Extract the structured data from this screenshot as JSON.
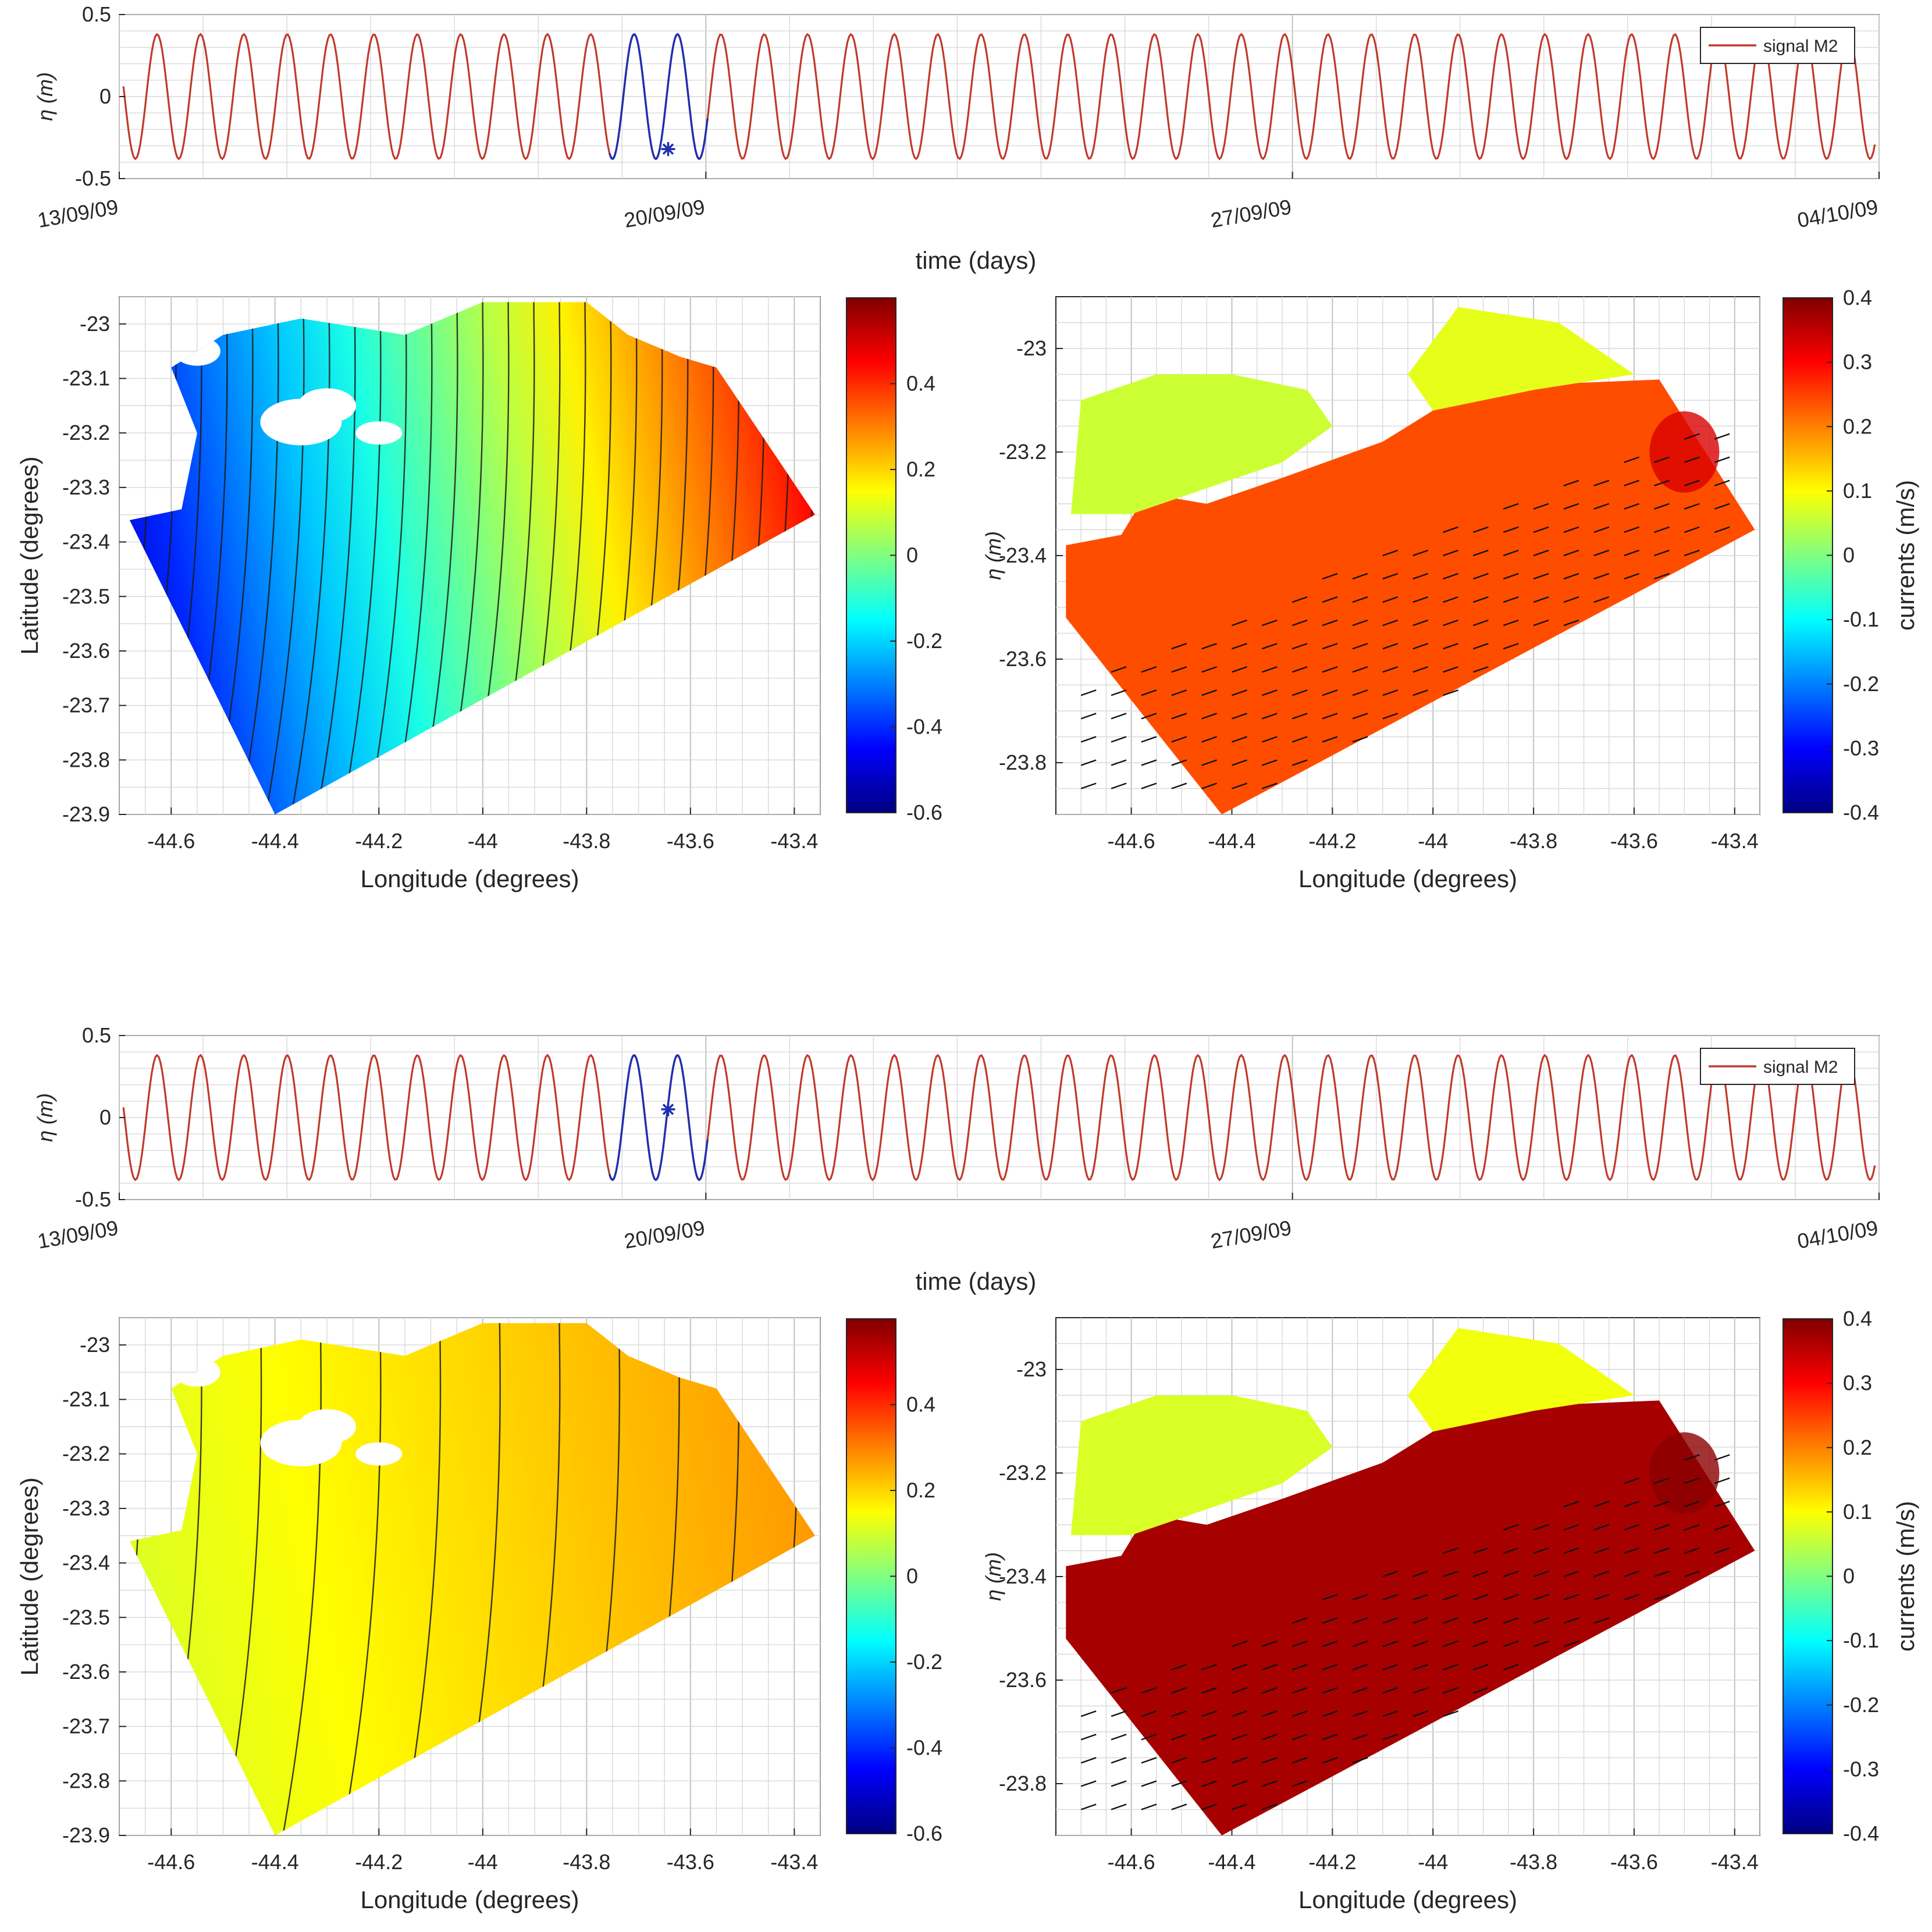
{
  "chart_data": [
    {
      "id": "ts1",
      "type": "line",
      "xlabel": "time (days)",
      "ylabel": "η (m)",
      "ylim": [
        -0.5,
        0.5
      ],
      "yticks": [
        "0.5",
        "0",
        "-0.5"
      ],
      "xticks": [
        "13/09/09",
        "20/09/09",
        "27/09/09",
        "04/10/09"
      ],
      "xlim": [
        "13/09/09",
        "04/10/09"
      ],
      "grid": true,
      "legend": {
        "placement": "top-right",
        "entries": [
          "signal M2"
        ]
      },
      "series": [
        {
          "name": "signal M2",
          "color": "#c0392b",
          "amplitude": 0.38,
          "period_days": 0.5175,
          "x": [
            "13/09/09",
            "04/10/09"
          ]
        },
        {
          "color": "#1f2fb0",
          "highlight_window": [
            "19/09/09",
            "20/09/09"
          ]
        }
      ],
      "marker": {
        "x": "19/09/09",
        "y": -0.32,
        "color": "#1f2fb0"
      }
    },
    {
      "id": "elev1",
      "type": "heatmap",
      "xlabel": "Longitude (degrees)",
      "ylabel": "Latitude (degrees)",
      "xlim": [
        -44.7,
        -43.35
      ],
      "ylim": [
        -23.9,
        -22.95
      ],
      "xticks": [
        "-44.6",
        "-44.4",
        "-44.2",
        "-44",
        "-43.8",
        "-43.6",
        "-43.4"
      ],
      "yticks": [
        "-23",
        "-23.1",
        "-23.2",
        "-23.3",
        "-23.4",
        "-23.5",
        "-23.6",
        "-23.7",
        "-23.8",
        "-23.9"
      ],
      "colorbar": {
        "range": [
          -0.6,
          0.6
        ],
        "ticks": [
          "0.4",
          "0.2",
          "0",
          "-0.2",
          "-0.4",
          "-0.6"
        ],
        "colormap": "jet"
      },
      "field": {
        "west_value": -0.5,
        "east_value": 0.45,
        "n_contours": 28
      },
      "grid": true
    },
    {
      "id": "curr1",
      "type": "heatmap",
      "xlabel": "Longitude (degrees)",
      "ylabel": "η (m)",
      "xlim": [
        -44.75,
        -43.35
      ],
      "ylim": [
        -23.9,
        -22.9
      ],
      "xticks": [
        "-44.6",
        "-44.4",
        "-44.2",
        "-44",
        "-43.8",
        "-43.6",
        "-43.4"
      ],
      "yticks": [
        "-23",
        "-23.2",
        "-23.4",
        "-23.6",
        "-23.8"
      ],
      "colorbar": {
        "label": "currents (m/s)",
        "range": [
          -0.4,
          0.4
        ],
        "ticks": [
          "0.4",
          "0.3",
          "0.2",
          "0.1",
          "0",
          "-0.1",
          "-0.2",
          "-0.3",
          "-0.4"
        ],
        "colormap": "jet"
      },
      "field": {
        "ocean_value": 0.24,
        "bay_value": 0.06,
        "hotspot_value": 0.33
      },
      "vectors": true,
      "grid": true
    },
    {
      "id": "ts2",
      "type": "line",
      "xlabel": "time (days)",
      "ylabel": "η (m)",
      "ylim": [
        -0.5,
        0.5
      ],
      "yticks": [
        "0.5",
        "0",
        "-0.5"
      ],
      "xticks": [
        "13/09/09",
        "20/09/09",
        "27/09/09",
        "04/10/09"
      ],
      "xlim": [
        "13/09/09",
        "04/10/09"
      ],
      "grid": true,
      "legend": {
        "placement": "top-right",
        "entries": [
          "signal M2"
        ]
      },
      "series": [
        {
          "name": "signal M2",
          "color": "#c0392b",
          "amplitude": 0.38,
          "period_days": 0.5175,
          "x": [
            "13/09/09",
            "04/10/09"
          ]
        },
        {
          "color": "#1f2fb0",
          "highlight_window": [
            "19/09/09",
            "20/09/09"
          ]
        }
      ],
      "marker": {
        "x": "19/09/09",
        "y": 0.05,
        "color": "#1f2fb0"
      }
    },
    {
      "id": "elev2",
      "type": "heatmap",
      "xlabel": "Longitude (degrees)",
      "ylabel": "Latitude (degrees)",
      "xlim": [
        -44.7,
        -43.35
      ],
      "ylim": [
        -23.9,
        -22.95
      ],
      "xticks": [
        "-44.6",
        "-44.4",
        "-44.2",
        "-44",
        "-43.8",
        "-43.6",
        "-43.4"
      ],
      "yticks": [
        "-23",
        "-23.1",
        "-23.2",
        "-23.3",
        "-23.4",
        "-23.5",
        "-23.6",
        "-23.7",
        "-23.8",
        "-23.9"
      ],
      "colorbar": {
        "range": [
          -0.6,
          0.6
        ],
        "ticks": [
          "0.4",
          "0.2",
          "0",
          "-0.2",
          "-0.4",
          "-0.6"
        ],
        "colormap": "jet"
      },
      "field": {
        "west_value": 0.1,
        "east_value": 0.27,
        "n_contours": 12
      },
      "grid": true
    },
    {
      "id": "curr2",
      "type": "heatmap",
      "xlabel": "Longitude (degrees)",
      "ylabel": "η (m)",
      "xlim": [
        -44.75,
        -43.35
      ],
      "ylim": [
        -23.9,
        -22.9
      ],
      "xticks": [
        "-44.6",
        "-44.4",
        "-44.2",
        "-44",
        "-43.8",
        "-43.6",
        "-43.4"
      ],
      "yticks": [
        "-23",
        "-23.2",
        "-23.4",
        "-23.6",
        "-23.8"
      ],
      "colorbar": {
        "label": "currents (m/s)",
        "range": [
          -0.4,
          0.4
        ],
        "ticks": [
          "0.4",
          "0.3",
          "0.2",
          "0.1",
          "0",
          "-0.1",
          "-0.2",
          "-0.3",
          "-0.4"
        ],
        "colormap": "jet"
      },
      "field": {
        "ocean_value": 0.37,
        "bay_value": 0.07,
        "hotspot_value": 0.39
      },
      "vectors": true,
      "grid": true
    }
  ]
}
